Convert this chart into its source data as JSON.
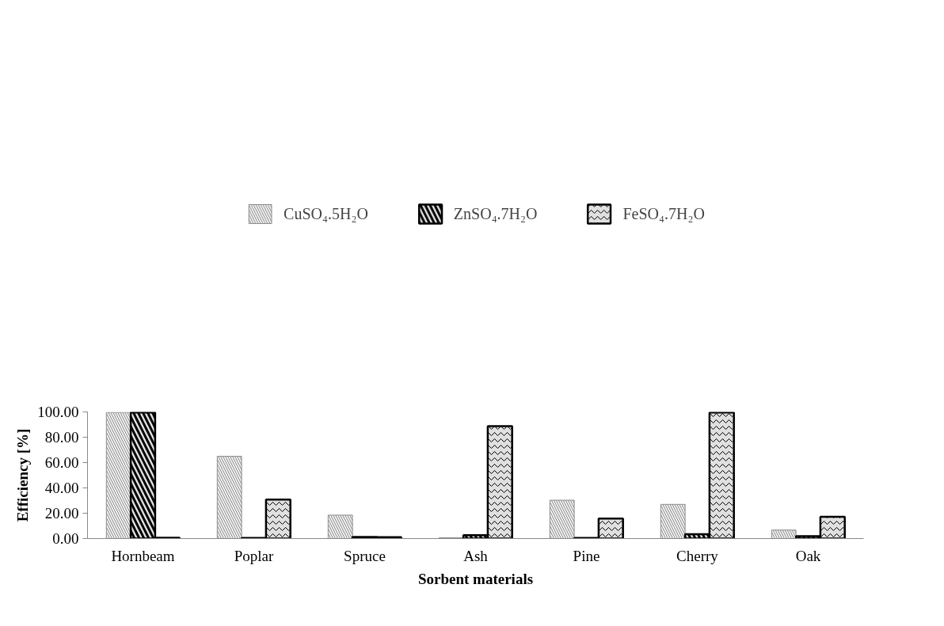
{
  "chart_data": {
    "type": "bar",
    "xlabel": "Sorbent materials",
    "ylabel": "Efficiency [%]",
    "categories": [
      "Hornbeam",
      "Poplar",
      "Spruce",
      "Ash",
      "Pine",
      "Cherry",
      "Oak"
    ],
    "series": [
      {
        "name": "CuSO₄.5H₂O",
        "color": "#8c8c8c",
        "values": [
          99.6,
          65.0,
          18.5,
          0.6,
          30.3,
          27.0,
          6.7
        ]
      },
      {
        "name": "ZnSO₄.7H₂O",
        "color": "#000000",
        "values": [
          99.6,
          0.5,
          1.3,
          2.6,
          0.5,
          3.4,
          1.9
        ]
      },
      {
        "name": "FeSO₄.7H₂O",
        "color": "#000000",
        "values": [
          0.6,
          30.8,
          1.1,
          88.8,
          15.8,
          99.6,
          17.2
        ]
      }
    ],
    "ylim": [
      0,
      100
    ],
    "yticks": [
      {
        "value": 0,
        "label": "0.00"
      },
      {
        "value": 20,
        "label": "20.00"
      },
      {
        "value": 40,
        "label": "40.00"
      },
      {
        "value": 60,
        "label": "60.00"
      },
      {
        "value": 80,
        "label": "80.00"
      },
      {
        "value": 100,
        "label": "100.00"
      }
    ],
    "grid": false,
    "legend": "top"
  }
}
